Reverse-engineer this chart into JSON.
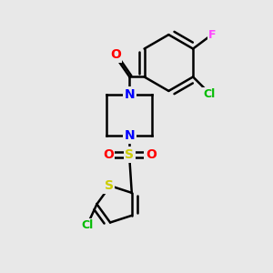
{
  "bg_color": "#e8e8e8",
  "bond_color": "#000000",
  "bond_width": 1.8,
  "dbo": 0.08,
  "atom_colors": {
    "O": "#ff0000",
    "N": "#0000ff",
    "S": "#cccc00",
    "Cl": "#00bb00",
    "F": "#ff44ff",
    "C": "#000000"
  },
  "font_size": 10,
  "fig_size": [
    3.0,
    3.0
  ],
  "dpi": 100,
  "xlim": [
    0,
    10
  ],
  "ylim": [
    0,
    10
  ]
}
